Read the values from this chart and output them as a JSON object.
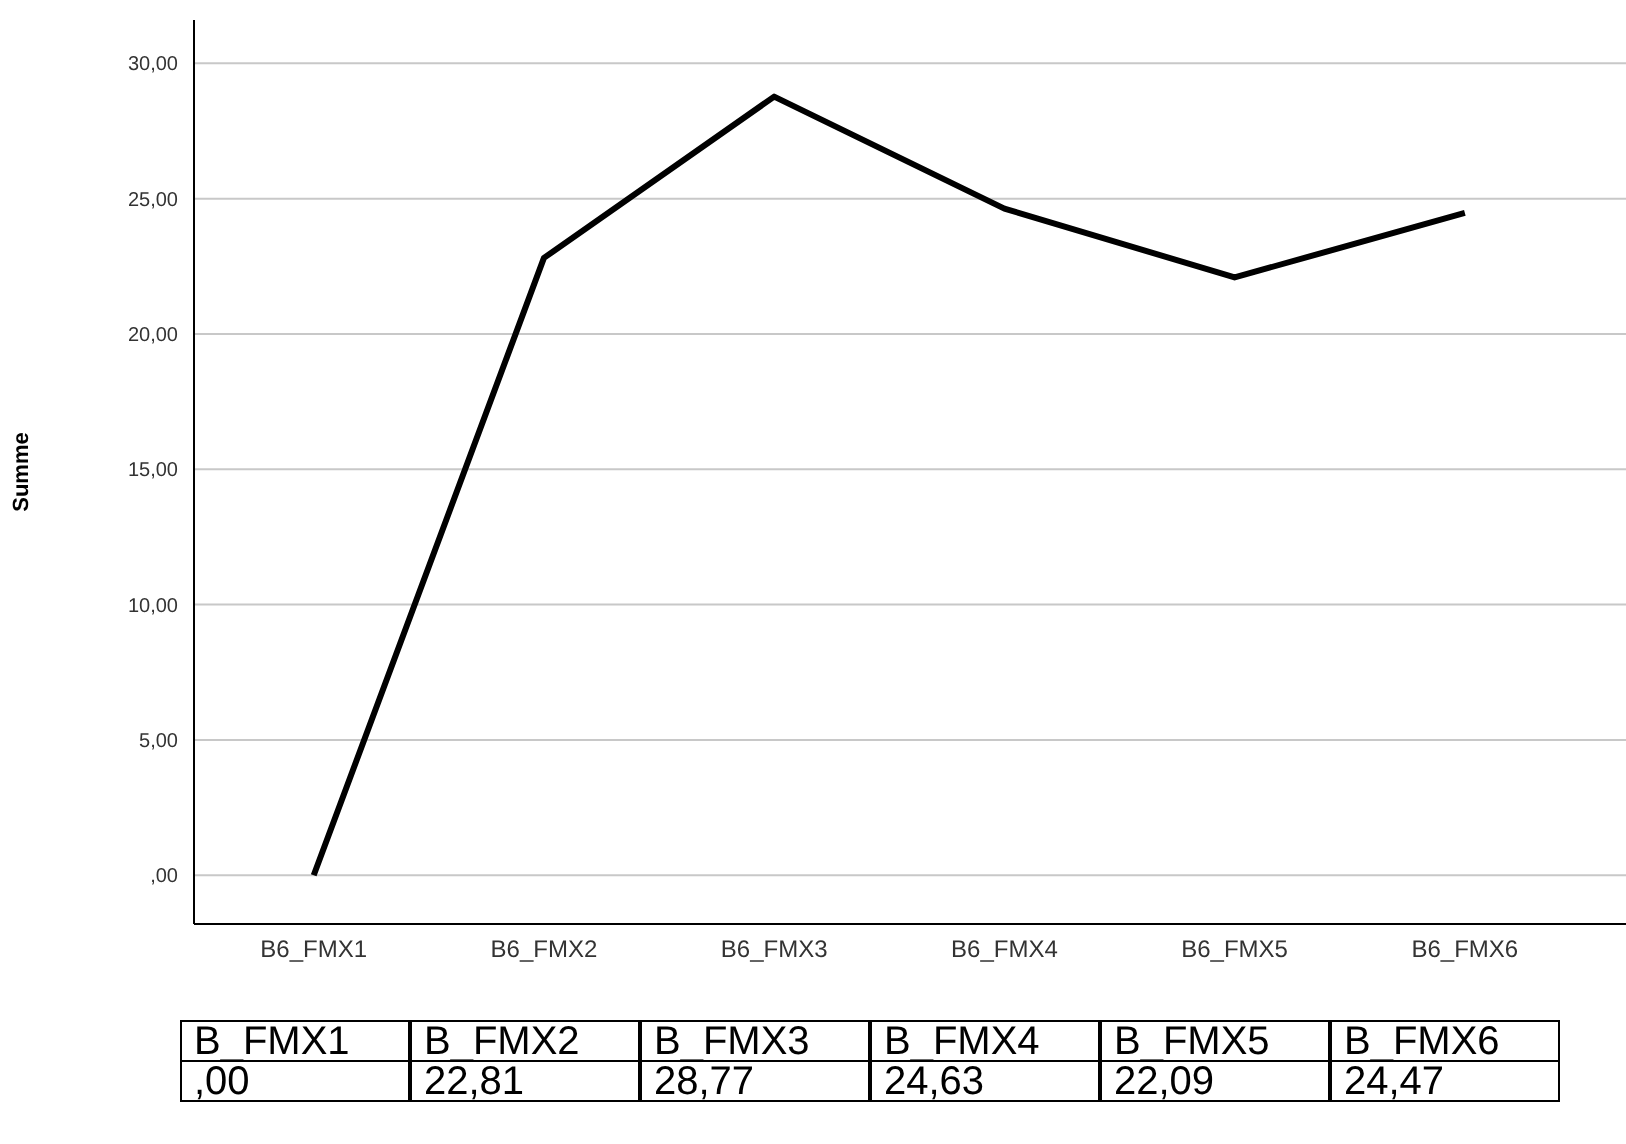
{
  "chart_data": {
    "type": "line",
    "ylabel": "Summe",
    "categories": [
      "B6_FMX1",
      "B6_FMX2",
      "B6_FMX3",
      "B6_FMX4",
      "B6_FMX5",
      "B6_FMX6"
    ],
    "series": [
      {
        "color": "#000000",
        "values": [
          0,
          22.81,
          28.77,
          24.63,
          22.09,
          24.47
        ],
        "value_labels": [
          ",00",
          "22,81",
          "28,77",
          "24,63",
          "22,09",
          "24,47"
        ]
      }
    ],
    "ylim": [
      -1.8,
      31.6
    ],
    "yticks": [
      {
        "value": 0,
        "label": ",00"
      },
      {
        "value": 5,
        "label": "5,00"
      },
      {
        "value": 10,
        "label": "10,00"
      },
      {
        "value": 15,
        "label": "15,00"
      },
      {
        "value": 20,
        "label": "20,00"
      },
      {
        "value": 25,
        "label": "25,00"
      },
      {
        "value": 30,
        "label": "30,00"
      }
    ],
    "grid": "y",
    "marker": "none",
    "line_style": "solid",
    "annotations": [
      "B_FMX1",
      "B_FMX2",
      "B_FMX3",
      "B_FMX4",
      "B_FMX5",
      "B_FMX6"
    ]
  }
}
